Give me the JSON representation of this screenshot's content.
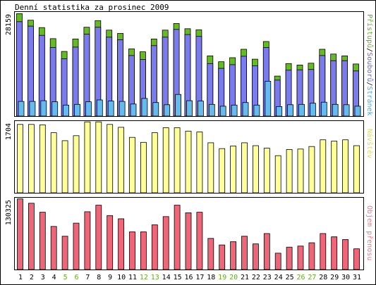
{
  "title": "Denní statistika za prosinec 2009",
  "colors": {
    "pristupy": "#66bb22",
    "soubory": "#7b7bee",
    "stranek": "#66bbee",
    "navstevy": "#ffff99",
    "objem": "#ee6677",
    "label_pristupy": "#66aa33",
    "label_soubory": "#6666cc",
    "label_stranek": "#44aaee",
    "label_navstevy": "#dddd55",
    "label_objem": "#ee7788",
    "weekday_tick": "#000000",
    "weekend_tick": "#66aa22"
  },
  "chart_data": [
    {
      "type": "bar",
      "name": "hits",
      "max_label": "28159",
      "side_label": {
        "parts": [
          "Přístupů",
          "/",
          "Souborů",
          "/",
          "Stránek"
        ]
      },
      "ylim": [
        0,
        28159
      ],
      "categories": [
        "1",
        "2",
        "3",
        "4",
        "5",
        "6",
        "7",
        "8",
        "9",
        "10",
        "11",
        "12",
        "13",
        "14",
        "15",
        "16",
        "17",
        "18",
        "19",
        "20",
        "21",
        "22",
        "23",
        "24",
        "25",
        "26",
        "27",
        "28",
        "29",
        "30",
        "31"
      ],
      "series": [
        {
          "name": "Přístupů",
          "values": [
            27900,
            26100,
            24100,
            21100,
            17600,
            21000,
            24200,
            26000,
            23400,
            22500,
            18300,
            17500,
            21000,
            23400,
            25200,
            23800,
            23500,
            16400,
            14800,
            15900,
            18200,
            15500,
            20300,
            10900,
            14300,
            13900,
            14400,
            18200,
            16900,
            16400,
            14200
          ]
        },
        {
          "name": "Souborů",
          "values": [
            25700,
            24500,
            22000,
            18700,
            15600,
            18800,
            22300,
            24200,
            21500,
            20800,
            16500,
            15400,
            19200,
            21500,
            23600,
            22200,
            21700,
            14300,
            13000,
            14000,
            16300,
            13700,
            18700,
            9800,
            12500,
            12600,
            12700,
            16500,
            15100,
            15100,
            12300
          ]
        },
        {
          "name": "Stránek",
          "values": [
            4000,
            4000,
            4200,
            3900,
            3000,
            3200,
            3900,
            4400,
            4100,
            4000,
            3300,
            4800,
            3700,
            3100,
            5900,
            4200,
            4100,
            3200,
            2700,
            3000,
            3700,
            3000,
            9500,
            2600,
            3100,
            3200,
            3500,
            3800,
            3200,
            3100,
            2700
          ]
        }
      ]
    },
    {
      "type": "bar",
      "name": "visits",
      "max_label": "1704",
      "side_label": {
        "parts": [
          "Návštěv"
        ]
      },
      "ylim": [
        0,
        1704
      ],
      "categories": [
        "1",
        "2",
        "3",
        "4",
        "5",
        "6",
        "7",
        "8",
        "9",
        "10",
        "11",
        "12",
        "13",
        "14",
        "15",
        "16",
        "17",
        "18",
        "19",
        "20",
        "21",
        "22",
        "23",
        "24",
        "25",
        "26",
        "27",
        "28",
        "29",
        "30",
        "31"
      ],
      "series": [
        {
          "name": "Návštěv",
          "values": [
            1640,
            1640,
            1630,
            1440,
            1250,
            1370,
            1700,
            1700,
            1640,
            1570,
            1330,
            1210,
            1440,
            1560,
            1560,
            1480,
            1460,
            1200,
            1060,
            1120,
            1200,
            1130,
            1070,
            890,
            1040,
            1050,
            1110,
            1270,
            1240,
            1270,
            1130
          ]
        }
      ]
    },
    {
      "type": "bar",
      "name": "volume",
      "max_label": "130325",
      "side_label": {
        "parts": [
          "Objem přenosu"
        ]
      },
      "ylim": [
        0,
        130325
      ],
      "categories": [
        "1",
        "2",
        "3",
        "4",
        "5",
        "6",
        "7",
        "8",
        "9",
        "10",
        "11",
        "12",
        "13",
        "14",
        "15",
        "16",
        "17",
        "18",
        "19",
        "20",
        "21",
        "22",
        "23",
        "24",
        "25",
        "26",
        "27",
        "28",
        "29",
        "30",
        "31"
      ],
      "series": [
        {
          "name": "Objem přenosu",
          "values": [
            129500,
            121500,
            105000,
            79000,
            61000,
            85000,
            106000,
            118000,
            99000,
            93000,
            69000,
            69000,
            82000,
            97000,
            118000,
            104000,
            105000,
            57000,
            45000,
            51000,
            61000,
            47000,
            66000,
            30000,
            41000,
            43000,
            49000,
            66000,
            60000,
            55000,
            38000
          ]
        }
      ]
    }
  ],
  "x_axis": {
    "labels": [
      "1",
      "2",
      "3",
      "4",
      "5",
      "6",
      "7",
      "8",
      "9",
      "10",
      "11",
      "12",
      "13",
      "14",
      "15",
      "16",
      "17",
      "18",
      "19",
      "20",
      "21",
      "22",
      "23",
      "24",
      "25",
      "26",
      "27",
      "28",
      "29",
      "30",
      "31"
    ],
    "weekend_days": [
      "5",
      "6",
      "12",
      "13",
      "19",
      "20",
      "26",
      "27"
    ]
  }
}
